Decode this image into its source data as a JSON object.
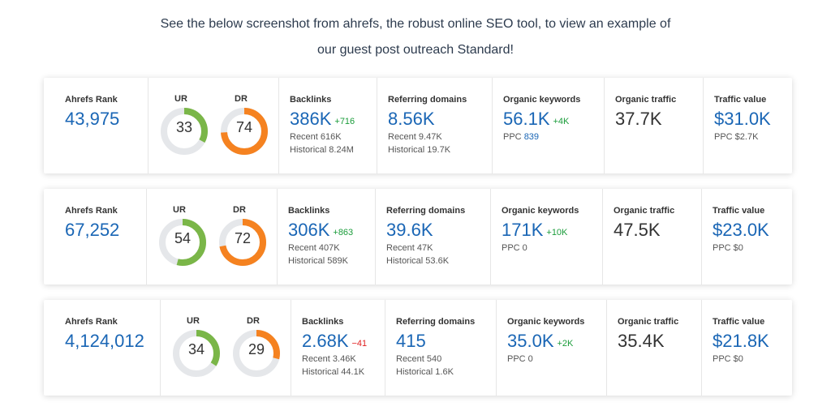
{
  "intro": {
    "line1": "See the below screenshot from ahrefs, the robust online SEO tool, to view an example of",
    "line2": "our guest post outreach Standard!"
  },
  "colors": {
    "ur": "#7ab648",
    "dr": "#f58220",
    "track": "#e5e7ea",
    "value": "#1a66b5"
  },
  "cards": [
    {
      "ahrefs_rank_label": "Ahrefs Rank",
      "ahrefs_rank": "43,975",
      "ur_label": "UR",
      "ur": "33",
      "ur_fraction": 0.33,
      "dr_label": "DR",
      "dr": "74",
      "dr_fraction": 0.74,
      "backlinks_label": "Backlinks",
      "backlinks": "386K",
      "backlinks_delta": "+716",
      "backlinks_delta_dir": "up",
      "backlinks_recent": "Recent 616K",
      "backlinks_historical": "Historical 8.24M",
      "ref_label": "Referring domains",
      "ref": "8.56K",
      "ref_recent": "Recent 9.47K",
      "ref_historical": "Historical 19.7K",
      "kw_label": "Organic keywords",
      "kw": "56.1K",
      "kw_delta": "+4K",
      "ppc_prefix": "PPC",
      "ppc_value": "839",
      "traffic_label": "Organic traffic",
      "traffic": "37.7K",
      "value_label": "Traffic value",
      "value": "$31.0K",
      "value_ppc": "PPC $2.7K"
    },
    {
      "ahrefs_rank_label": "Ahrefs Rank",
      "ahrefs_rank": "67,252",
      "ur_label": "UR",
      "ur": "54",
      "ur_fraction": 0.54,
      "dr_label": "DR",
      "dr": "72",
      "dr_fraction": 0.72,
      "backlinks_label": "Backlinks",
      "backlinks": "306K",
      "backlinks_delta": "+863",
      "backlinks_delta_dir": "up",
      "backlinks_recent": "Recent 407K",
      "backlinks_historical": "Historical 589K",
      "ref_label": "Referring domains",
      "ref": "39.6K",
      "ref_recent": "Recent 47K",
      "ref_historical": "Historical 53.6K",
      "kw_label": "Organic keywords",
      "kw": "171K",
      "kw_delta": "+10K",
      "ppc_prefix": "PPC 0",
      "ppc_value": "",
      "traffic_label": "Organic traffic",
      "traffic": "47.5K",
      "value_label": "Traffic value",
      "value": "$23.0K",
      "value_ppc": "PPC $0"
    },
    {
      "ahrefs_rank_label": "Ahrefs Rank",
      "ahrefs_rank": "4,124,012",
      "ur_label": "UR",
      "ur": "34",
      "ur_fraction": 0.34,
      "dr_label": "DR",
      "dr": "29",
      "dr_fraction": 0.29,
      "backlinks_label": "Backlinks",
      "backlinks": "2.68K",
      "backlinks_delta": "−41",
      "backlinks_delta_dir": "down",
      "backlinks_recent": "Recent 3.46K",
      "backlinks_historical": "Historical 44.1K",
      "ref_label": "Referring domains",
      "ref": "415",
      "ref_recent": "Recent 540",
      "ref_historical": "Historical 1.6K",
      "kw_label": "Organic keywords",
      "kw": "35.0K",
      "kw_delta": "+2K",
      "ppc_prefix": "PPC 0",
      "ppc_value": "",
      "traffic_label": "Organic traffic",
      "traffic": "35.4K",
      "value_label": "Traffic value",
      "value": "$21.8K",
      "value_ppc": "PPC $0"
    }
  ]
}
